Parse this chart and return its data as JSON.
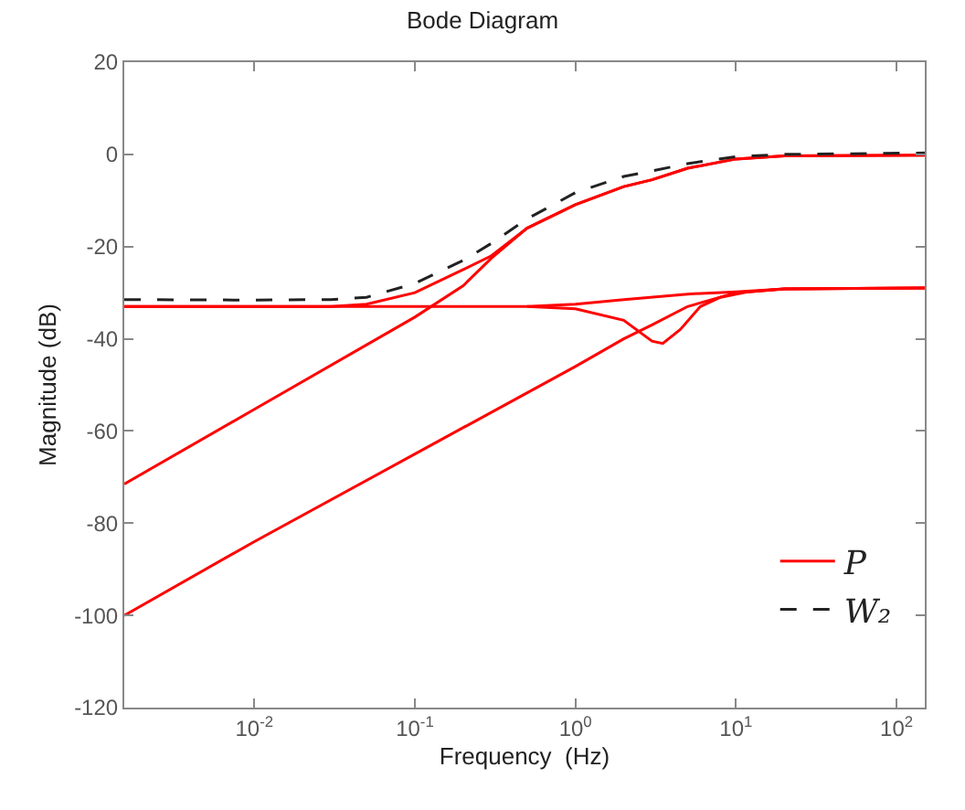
{
  "chart_data": {
    "type": "line",
    "title": "Bode Diagram",
    "xlabel": "Frequency  (Hz)",
    "ylabel": "Magnitude (dB)",
    "log": "x",
    "grid": false,
    "legend": "bottom right",
    "line_style": "solid",
    "marker": "none",
    "xlim": [
      0.00155,
      150
    ],
    "ylim": [
      -120,
      20
    ],
    "xticks": [
      {
        "value": 0.01,
        "label": "10$^{-2}$"
      },
      {
        "value": 0.1,
        "label": "10$^{-1}$"
      },
      {
        "value": 1,
        "label": "10$^{0}$"
      },
      {
        "value": 10,
        "label": "10$^{1}$"
      },
      {
        "value": 100,
        "label": "10$^{2}$"
      }
    ],
    "yticks": [
      -120,
      -100,
      -80,
      -60,
      -40,
      -20,
      0,
      20
    ],
    "series": [
      {
        "name": "P",
        "color": "#ff0000",
        "x": [
          0.00155,
          0.01,
          0.03,
          0.05,
          0.1,
          0.2,
          0.3,
          0.5,
          1,
          2,
          3,
          5,
          10,
          20,
          150
        ],
        "values": [
          -33,
          -33,
          -33,
          -32.5,
          -30,
          -25,
          -22,
          -16,
          -10.9,
          -7,
          -5.5,
          -3,
          -1,
          -0.3,
          -0.2
        ]
      },
      {
        "color": "#ff0000",
        "x": [
          0.00155,
          0.01,
          0.1,
          0.2,
          0.3,
          0.5,
          1,
          2,
          3,
          5,
          10,
          20,
          150
        ],
        "values": [
          -71.5,
          -55.3,
          -35.3,
          -28.5,
          -22.5,
          -16,
          -10.9,
          -7,
          -5.5,
          -3,
          -1,
          -0.3,
          -0.2
        ]
      },
      {
        "color": "#ff0000",
        "x": [
          0.00155,
          0.1,
          0.5,
          1,
          2,
          3,
          3.5,
          4.5,
          6,
          8,
          12,
          20,
          150
        ],
        "values": [
          -33,
          -33,
          -33,
          -33.5,
          -36,
          -40.5,
          -41,
          -38,
          -33,
          -31,
          -29.8,
          -29.2,
          -29
        ]
      },
      {
        "color": "#ff0000",
        "x": [
          0.5,
          1,
          2,
          5,
          10,
          20,
          150
        ],
        "values": [
          -33,
          -32.5,
          -31.5,
          -30.3,
          -29.8,
          -29.2,
          -29
        ]
      },
      {
        "color": "#ff0000",
        "x": [
          0.00155,
          0.01,
          0.1,
          1,
          2,
          3,
          5,
          10,
          20,
          150
        ],
        "values": [
          -100,
          -84,
          -65,
          -46,
          -40,
          -37,
          -33,
          -30,
          -29.2,
          -29
        ]
      },
      {
        "name": "W₂",
        "color": "#222222",
        "line_style": "dashed",
        "x": [
          0.00155,
          0.01,
          0.03,
          0.05,
          0.1,
          0.2,
          0.3,
          0.5,
          1,
          2,
          3,
          5,
          10,
          20,
          150
        ],
        "values": [
          -31.5,
          -31.6,
          -31.5,
          -31,
          -28,
          -23,
          -19.3,
          -14,
          -8.3,
          -4.8,
          -3.6,
          -2,
          -0.5,
          0,
          0.3
        ]
      }
    ]
  }
}
